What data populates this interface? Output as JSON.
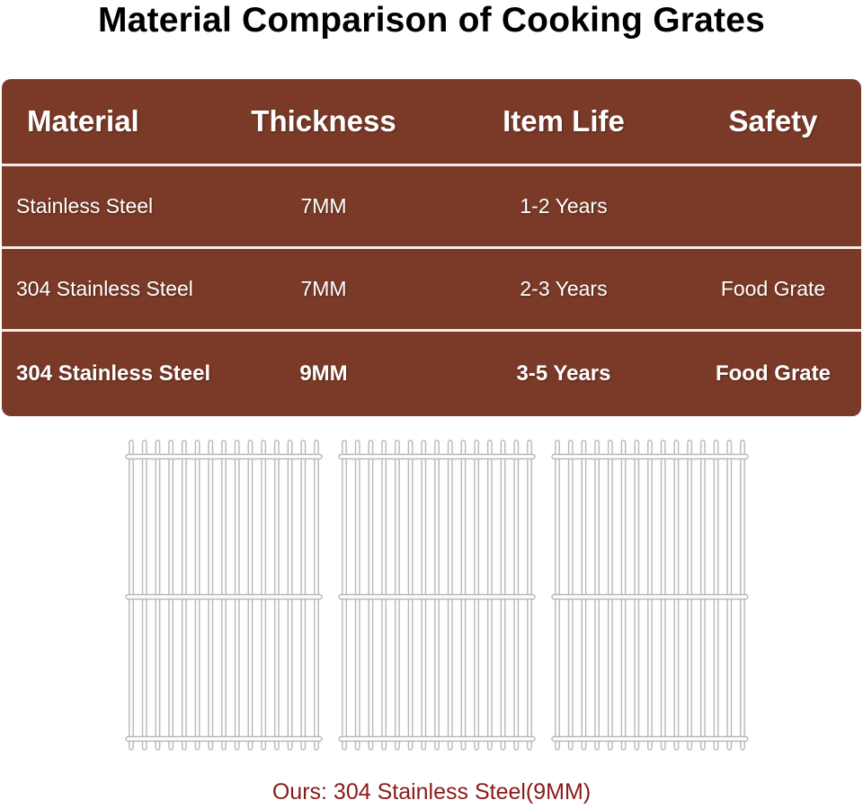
{
  "title": "Material Comparison of Cooking Grates",
  "table": {
    "headers": [
      "Material",
      "Thickness",
      "Item Life",
      "Safety"
    ],
    "rows": [
      [
        "Stainless Steel",
        "7MM",
        "1-2 Years",
        ""
      ],
      [
        "304 Stainless Steel",
        "7MM",
        "2-3 Years",
        "Food Grate"
      ],
      [
        "304 Stainless Steel",
        "9MM",
        "3-5 Years",
        "Food Grate"
      ]
    ],
    "colors": {
      "background": "#7a3a27",
      "separator": "#f4ece6",
      "text": "#ffffff"
    }
  },
  "image": {
    "grate_count": 3,
    "grate_color": "#b8b8b8"
  },
  "caption": {
    "text": "Ours: 304 Stainless Steel(9MM)",
    "color": "#8b1a1a"
  }
}
